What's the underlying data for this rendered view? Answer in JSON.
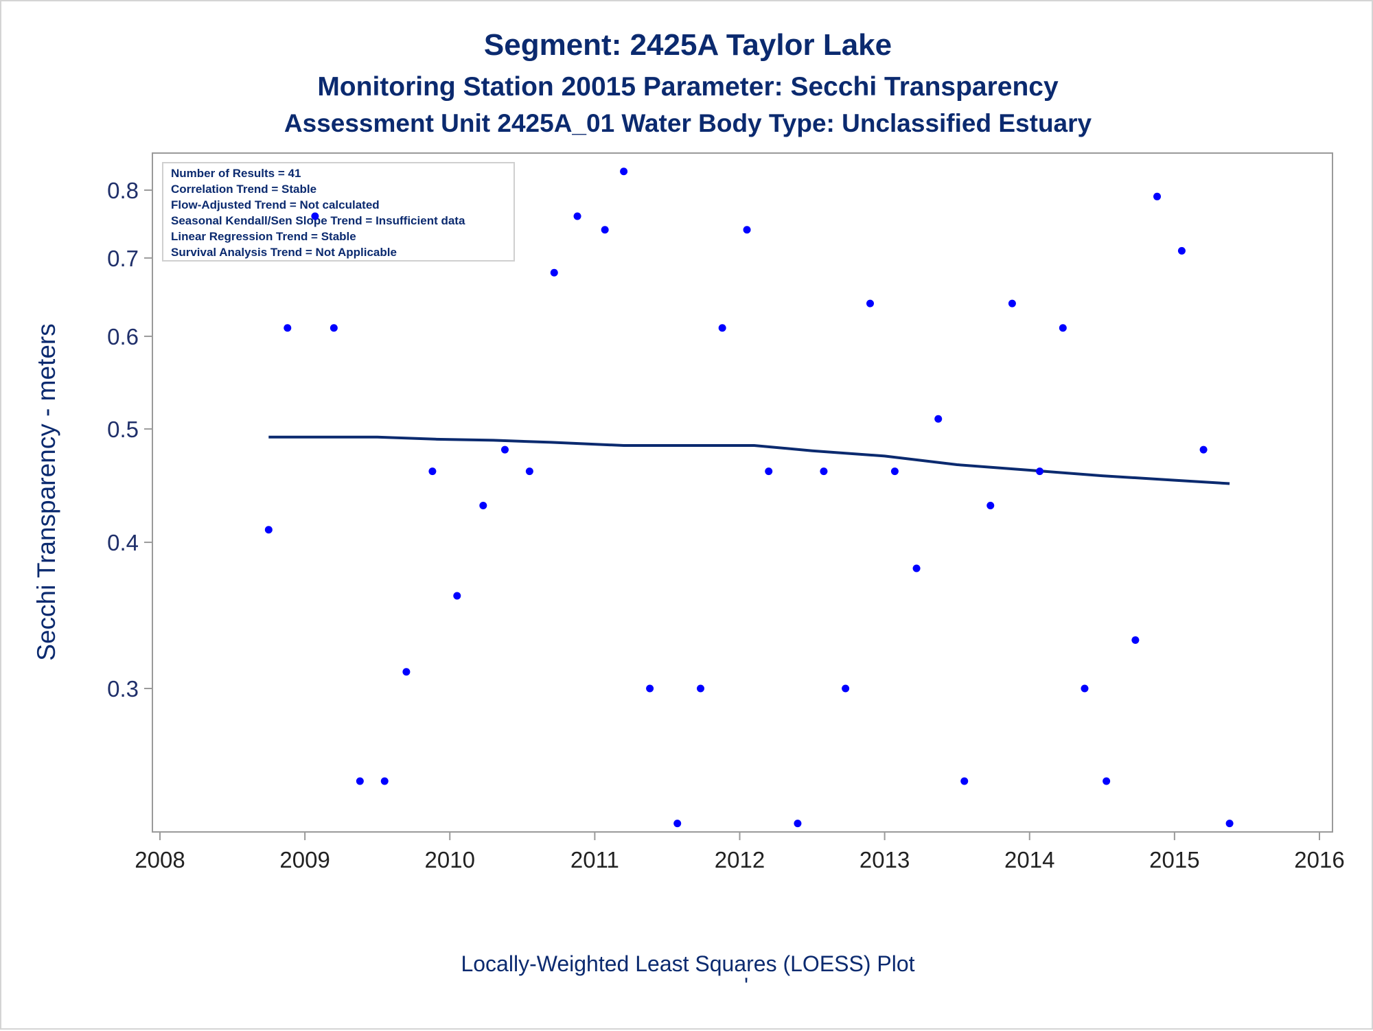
{
  "chart_data": {
    "type": "scatter",
    "title": "Segment: 2425A  Taylor Lake",
    "subtitle": "Monitoring Station 20015 Parameter: Secchi Transparency",
    "subtitle2": "Assessment Unit 2425A_01   Water Body Type: Unclassified Estuary",
    "xlabel": "Locally-Weighted Least Squares (LOESS) Plot",
    "footnote": "'",
    "ylabel": "Secchi Transparency - meters",
    "x_ticks": [
      "2008",
      "2009",
      "2010",
      "2011",
      "2012",
      "2013",
      "2014",
      "2015",
      "2016"
    ],
    "y_ticks": [
      "0.3",
      "0.4",
      "0.5",
      "0.6",
      "0.7",
      "0.8"
    ],
    "y_scale": "log",
    "xlim": [
      2008,
      2016
    ],
    "ylim": [
      0.225,
      0.84
    ],
    "legend_placement": "top-left",
    "inset_text": [
      "Number of Results = 41",
      "Correlation Trend = Stable",
      "Flow-Adjusted Trend = Not calculated",
      "Seasonal Kendall/Sen Slope Trend = Insufficient data",
      "Linear Regression Trend = Stable",
      "Survival Analysis Trend = Not Applicable"
    ],
    "series": [
      {
        "type": "scatter",
        "x": [
          2008.75,
          2008.88,
          2009.07,
          2009.2,
          2009.38,
          2009.55,
          2009.7,
          2009.88,
          2010.05,
          2010.23,
          2010.38,
          2010.55,
          2010.72,
          2010.88,
          2011.07,
          2011.2,
          2011.38,
          2011.57,
          2011.73,
          2011.88,
          2012.05,
          2012.2,
          2012.4,
          2012.58,
          2012.73,
          2012.9,
          2013.07,
          2013.22,
          2013.37,
          2013.55,
          2013.73,
          2013.88,
          2014.07,
          2014.23,
          2014.38,
          2014.53,
          2014.73,
          2014.88,
          2015.05,
          2015.2,
          2015.38
        ],
        "y": [
          0.41,
          0.61,
          0.76,
          0.61,
          0.25,
          0.25,
          0.31,
          0.46,
          0.36,
          0.43,
          0.48,
          0.46,
          0.68,
          0.76,
          0.74,
          0.83,
          0.3,
          0.23,
          0.3,
          0.61,
          0.74,
          0.46,
          0.23,
          0.46,
          0.3,
          0.64,
          0.46,
          0.38,
          0.51,
          0.25,
          0.43,
          0.64,
          0.46,
          0.61,
          0.3,
          0.25,
          0.33,
          0.79,
          0.71,
          0.48,
          0.23
        ]
      },
      {
        "type": "line",
        "x": [
          2008.75,
          2009.0,
          2009.5,
          2009.9,
          2010.3,
          2010.7,
          2011.2,
          2011.6,
          2012.1,
          2012.5,
          2013.0,
          2013.5,
          2014.0,
          2014.5,
          2015.0,
          2015.38
        ],
        "y": [
          0.492,
          0.492,
          0.492,
          0.49,
          0.489,
          0.487,
          0.484,
          0.484,
          0.484,
          0.479,
          0.474,
          0.466,
          0.461,
          0.456,
          0.452,
          0.449
        ]
      }
    ],
    "colors": {
      "points": "#0000ff",
      "line": "#0b2a6f",
      "text": "#0b2a6f",
      "axis": "#9a9a9a"
    }
  }
}
